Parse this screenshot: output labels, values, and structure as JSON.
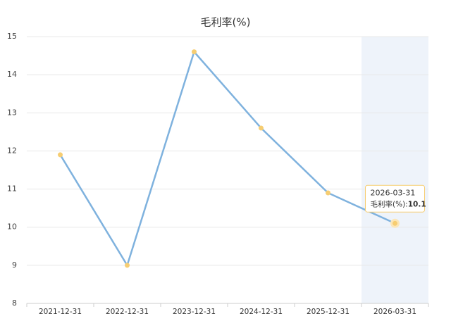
{
  "chart_data": {
    "type": "line",
    "title": "毛利率(%)",
    "categories": [
      "2021-12-31",
      "2022-12-31",
      "2023-12-31",
      "2024-12-31",
      "2025-12-31",
      "2026-03-31"
    ],
    "series": [
      {
        "name": "毛利率(%)",
        "color": "#7fb2de",
        "marker_color": "#f6cd72",
        "values": [
          11.9,
          9.0,
          14.6,
          12.6,
          10.9,
          10.1
        ]
      }
    ],
    "ylim": [
      8,
      15
    ],
    "yticks": [
      8,
      9,
      10,
      11,
      12,
      13,
      14,
      15
    ],
    "grid": true,
    "highlight_index": 5,
    "highlight_color": "#eef3fa",
    "tooltip": {
      "label": "毛利率(%):"
    }
  }
}
